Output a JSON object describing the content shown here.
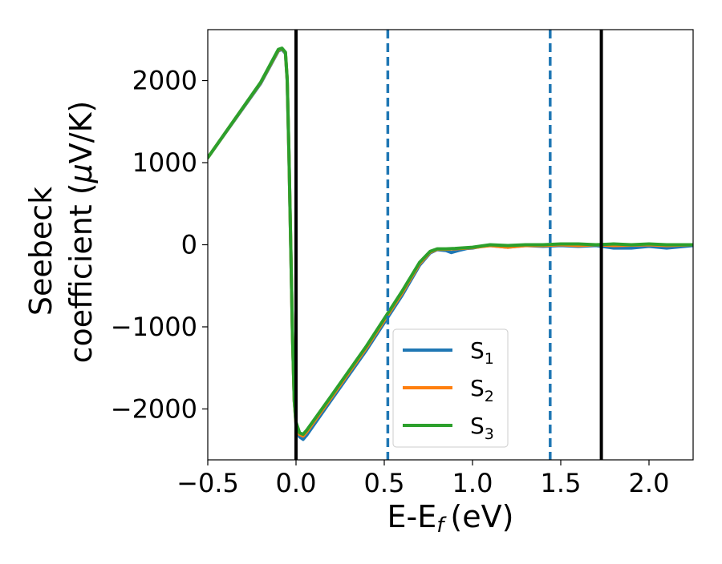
{
  "chart_data": {
    "type": "line",
    "xlabel": "E-E",
    "xlabel_sub": "f",
    "xlabel_unit": "(eV)",
    "ylabel_line1": "Seebeck",
    "ylabel_line2": "coefficient  (",
    "ylabel_mu": "μ",
    "ylabel_unit": "V/K)",
    "xlim": [
      -0.5,
      2.25
    ],
    "ylim": [
      -2620,
      2620
    ],
    "xticks": [
      {
        "value": -0.5,
        "label": "−0.5"
      },
      {
        "value": 0.0,
        "label": "0.0"
      },
      {
        "value": 0.5,
        "label": "0.5"
      },
      {
        "value": 1.0,
        "label": "1.0"
      },
      {
        "value": 1.5,
        "label": "1.5"
      },
      {
        "value": 2.0,
        "label": "2.0"
      }
    ],
    "yticks": [
      {
        "value": -2000,
        "label": "−2000"
      },
      {
        "value": -1000,
        "label": "−1000"
      },
      {
        "value": 0,
        "label": "0"
      },
      {
        "value": 1000,
        "label": "1000"
      },
      {
        "value": 2000,
        "label": "2000"
      }
    ],
    "grid": false,
    "legend_position": "lower-center",
    "vertical_lines": [
      {
        "x": 0.0,
        "style": "solid",
        "color": "#000000"
      },
      {
        "x": 1.73,
        "style": "solid",
        "color": "#000000"
      },
      {
        "x": 0.52,
        "style": "dashed",
        "color": "#1f77b4"
      },
      {
        "x": 1.44,
        "style": "dashed",
        "color": "#1f77b4"
      }
    ],
    "series": [
      {
        "name": "S",
        "sub": "1",
        "color": "#1f77b4",
        "points": [
          [
            -0.5,
            1060
          ],
          [
            -0.2,
            1965
          ],
          [
            -0.1,
            2360
          ],
          [
            -0.08,
            2380
          ],
          [
            -0.06,
            2330
          ],
          [
            -0.05,
            2000
          ],
          [
            -0.04,
            1100
          ],
          [
            -0.03,
            0
          ],
          [
            -0.02,
            -1100
          ],
          [
            -0.01,
            -1900
          ],
          [
            0.0,
            -2200
          ],
          [
            0.02,
            -2340
          ],
          [
            0.04,
            -2370
          ],
          [
            0.06,
            -2320
          ],
          [
            0.2,
            -1890
          ],
          [
            0.4,
            -1280
          ],
          [
            0.6,
            -620
          ],
          [
            0.7,
            -250
          ],
          [
            0.76,
            -100
          ],
          [
            0.8,
            -60
          ],
          [
            0.85,
            -70
          ],
          [
            0.88,
            -95
          ],
          [
            0.92,
            -70
          ],
          [
            0.97,
            -45
          ],
          [
            1.0,
            -40
          ],
          [
            1.05,
            -20
          ],
          [
            1.1,
            -10
          ],
          [
            1.2,
            -30
          ],
          [
            1.3,
            -10
          ],
          [
            1.4,
            -20
          ],
          [
            1.5,
            -10
          ],
          [
            1.6,
            -20
          ],
          [
            1.7,
            -10
          ],
          [
            1.8,
            -40
          ],
          [
            1.9,
            -40
          ],
          [
            2.0,
            -20
          ],
          [
            2.1,
            -40
          ],
          [
            2.25,
            -10
          ]
        ]
      },
      {
        "name": "S",
        "sub": "2",
        "color": "#ff7f0e",
        "points": [
          [
            -0.5,
            1060
          ],
          [
            -0.2,
            1975
          ],
          [
            -0.1,
            2370
          ],
          [
            -0.08,
            2390
          ],
          [
            -0.06,
            2340
          ],
          [
            -0.05,
            2010
          ],
          [
            -0.04,
            1100
          ],
          [
            -0.03,
            0
          ],
          [
            -0.02,
            -1100
          ],
          [
            -0.01,
            -1900
          ],
          [
            0.0,
            -2180
          ],
          [
            0.02,
            -2310
          ],
          [
            0.04,
            -2330
          ],
          [
            0.06,
            -2280
          ],
          [
            0.2,
            -1860
          ],
          [
            0.4,
            -1250
          ],
          [
            0.6,
            -590
          ],
          [
            0.7,
            -230
          ],
          [
            0.76,
            -90
          ],
          [
            0.8,
            -55
          ],
          [
            0.85,
            -55
          ],
          [
            0.9,
            -50
          ],
          [
            1.0,
            -35
          ],
          [
            1.1,
            -10
          ],
          [
            1.2,
            -30
          ],
          [
            1.3,
            -10
          ],
          [
            1.4,
            -10
          ],
          [
            1.5,
            0
          ],
          [
            1.6,
            -10
          ],
          [
            1.7,
            0
          ],
          [
            1.8,
            -10
          ],
          [
            1.9,
            -5
          ],
          [
            2.0,
            0
          ],
          [
            2.1,
            -10
          ],
          [
            2.25,
            0
          ]
        ]
      },
      {
        "name": "S",
        "sub": "3",
        "color": "#2ca02c",
        "points": [
          [
            -0.5,
            1060
          ],
          [
            -0.2,
            1980
          ],
          [
            -0.1,
            2380
          ],
          [
            -0.08,
            2395
          ],
          [
            -0.06,
            2345
          ],
          [
            -0.05,
            2020
          ],
          [
            -0.04,
            1100
          ],
          [
            -0.03,
            0
          ],
          [
            -0.02,
            -1100
          ],
          [
            -0.01,
            -1900
          ],
          [
            0.0,
            -2160
          ],
          [
            0.02,
            -2290
          ],
          [
            0.04,
            -2310
          ],
          [
            0.06,
            -2260
          ],
          [
            0.2,
            -1840
          ],
          [
            0.4,
            -1230
          ],
          [
            0.6,
            -570
          ],
          [
            0.7,
            -215
          ],
          [
            0.76,
            -80
          ],
          [
            0.8,
            -50
          ],
          [
            0.85,
            -50
          ],
          [
            0.9,
            -45
          ],
          [
            1.0,
            -30
          ],
          [
            1.1,
            0
          ],
          [
            1.2,
            -10
          ],
          [
            1.3,
            0
          ],
          [
            1.4,
            0
          ],
          [
            1.5,
            10
          ],
          [
            1.6,
            10
          ],
          [
            1.7,
            0
          ],
          [
            1.8,
            10
          ],
          [
            1.9,
            0
          ],
          [
            2.0,
            10
          ],
          [
            2.1,
            0
          ],
          [
            2.25,
            0
          ]
        ]
      }
    ]
  }
}
